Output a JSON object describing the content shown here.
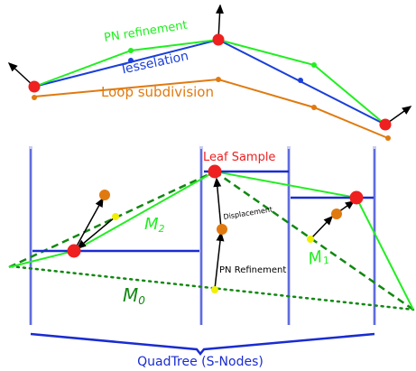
{
  "colors": {
    "green": "#22ee22",
    "darkgreen": "#118811",
    "blue": "#1a3fd8",
    "qblue": "#1a2cd0",
    "orange": "#e07a10",
    "red": "#ee2020",
    "yellow": "#f0f000",
    "black": "#000000",
    "paleblue": "#c8cdf4"
  },
  "labels": {
    "pn_refinement": "PN refinement",
    "tesselation": "Tesselation",
    "loop_subdivision": "Loop subdivision",
    "leaf_sample": "Leaf Sample",
    "displacement": "Displacement",
    "pn_refinement_arrow": "PN Refinement",
    "m2_base": "M",
    "m2_sub": "2",
    "m1_base": "M",
    "m1_sub": "1",
    "m0_base": "M",
    "m0_sub": "0",
    "quadtree": "QuadTree (S-Nodes)"
  },
  "icons": {
    "normal": "arrow-icon",
    "vertex": "vertex-dot",
    "sample": "sample-dot"
  }
}
